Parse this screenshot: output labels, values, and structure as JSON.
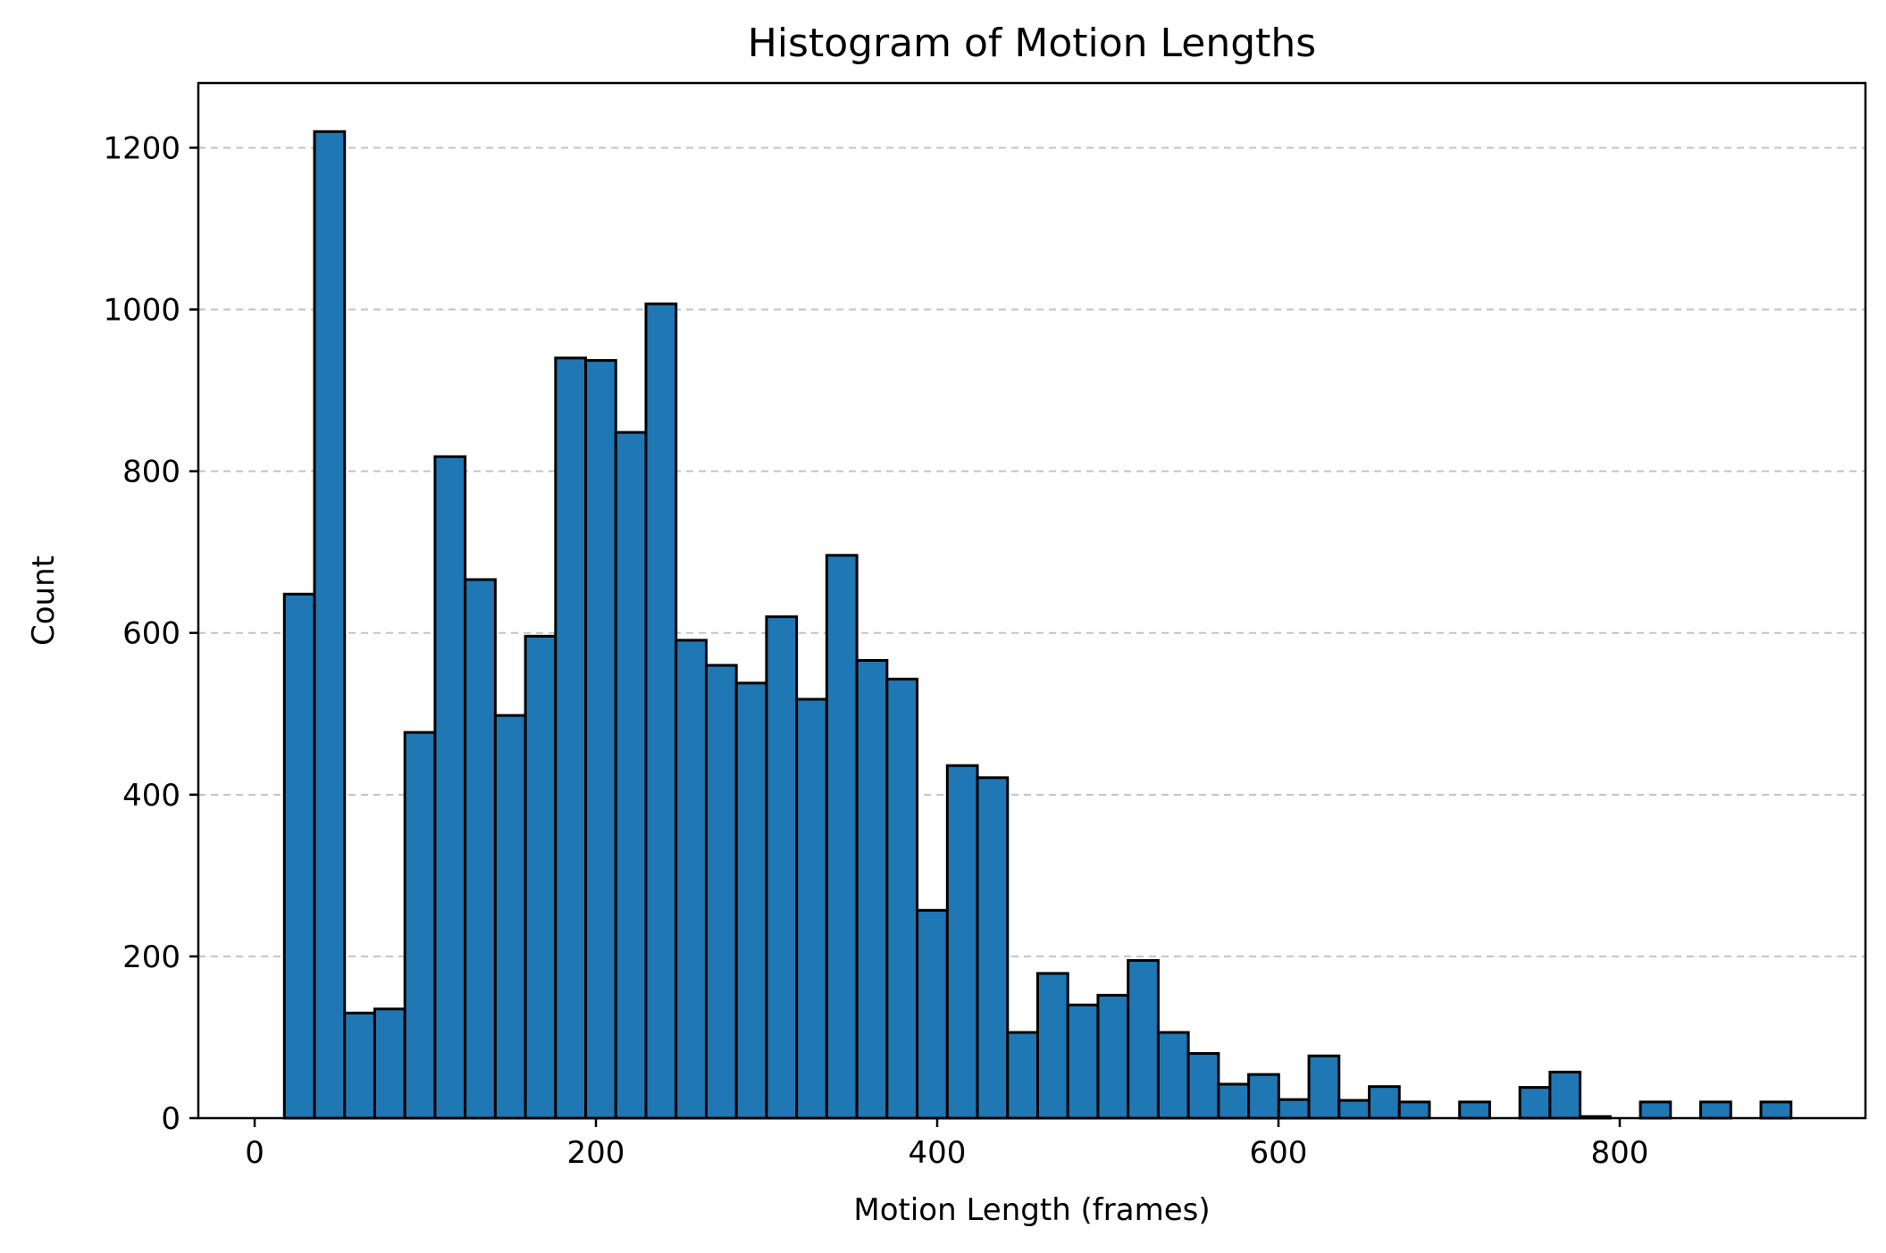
{
  "chart_data": {
    "type": "bar",
    "title": "Histogram of Motion Lengths",
    "xlabel": "Motion Length (frames)",
    "ylabel": "Count",
    "xlim": [
      -33,
      944
    ],
    "ylim": [
      0,
      1280
    ],
    "xticks": [
      0,
      200,
      400,
      600,
      800
    ],
    "yticks": [
      0,
      200,
      400,
      600,
      800,
      1000,
      1200
    ],
    "grid": "y-axis dashed",
    "colors": {
      "bar_fill": "#1f77b4",
      "bar_edge": "#000000"
    },
    "bin_start": 17.4,
    "bin_width": 17.66,
    "values": [
      648,
      1220,
      130,
      135,
      477,
      818,
      666,
      498,
      596,
      940,
      937,
      848,
      1007,
      591,
      560,
      538,
      620,
      518,
      696,
      566,
      543,
      257,
      436,
      421,
      106,
      179,
      140,
      152,
      195,
      106,
      80,
      42,
      54,
      23,
      77,
      22,
      39,
      20,
      0,
      20,
      0,
      38,
      57,
      2,
      0,
      20,
      0,
      20,
      0,
      20
    ]
  }
}
